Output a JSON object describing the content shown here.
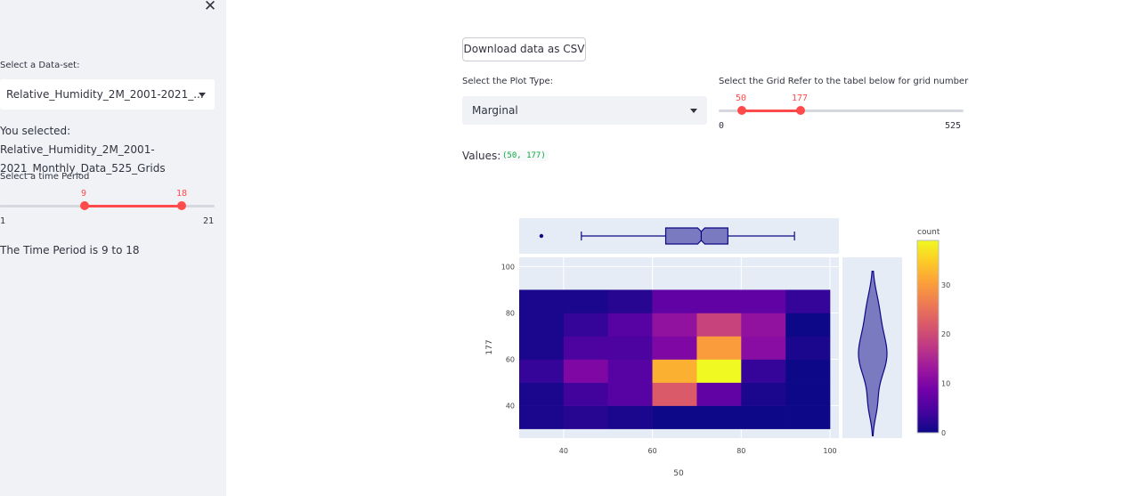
{
  "sidebar": {
    "close_icon": "close-icon",
    "dataset_label": "Select a Data-set:",
    "dataset_value": "Relative_Humidity_2M_2001-2021_...",
    "selected_line1": "You selected: Relative_Humidity_2M_2001-",
    "selected_line2": "2021_Monthly_Data_525_Grids",
    "period_label": "Select a time Period",
    "period_slider": {
      "min": "1",
      "max": "21",
      "low": "9",
      "high": "18"
    },
    "period_text": "The Time Period is 9 to 18"
  },
  "main": {
    "download_label": "Download data as CSV",
    "plot_type_label": "Select the Plot Type:",
    "plot_type_value": "Marginal",
    "grid_label": "Select the Grid Refer to the tabel below for grid number",
    "grid_slider": {
      "min": "0",
      "max": "525",
      "low": "50",
      "high": "177"
    },
    "values_label": "Values:",
    "values_code": "(50, 177)"
  },
  "colors": {
    "accent": "#ff4b4b",
    "sidebar_bg": "#f0f2f6",
    "code_green": "#09ab3b"
  },
  "chart_data": {
    "type": "heatmap",
    "subtype": "density_heatmap_with_marginal_box_and_violin",
    "xlabel": "50",
    "ylabel": "177",
    "x_ticks": [
      40,
      60,
      80,
      100
    ],
    "y_ticks": [
      40,
      60,
      80,
      100
    ],
    "x_range": [
      30,
      102
    ],
    "y_range": [
      26,
      104
    ],
    "x_bins": [
      [
        30,
        40
      ],
      [
        40,
        50
      ],
      [
        50,
        60
      ],
      [
        60,
        70
      ],
      [
        70,
        80
      ],
      [
        80,
        90
      ],
      [
        90,
        100
      ]
    ],
    "y_bins": [
      [
        30,
        40
      ],
      [
        40,
        50
      ],
      [
        50,
        60
      ],
      [
        60,
        70
      ],
      [
        70,
        80
      ],
      [
        80,
        90
      ]
    ],
    "counts": [
      [
        1,
        2,
        1,
        0,
        0,
        0,
        0
      ],
      [
        1,
        4,
        6,
        22,
        7,
        1,
        0
      ],
      [
        3,
        10,
        6,
        32,
        39,
        3,
        0
      ],
      [
        1,
        5,
        5,
        10,
        30,
        11,
        1
      ],
      [
        1,
        3,
        6,
        12,
        19,
        12,
        0
      ],
      [
        1,
        1,
        2,
        7,
        7,
        7,
        3
      ]
    ],
    "colorbar": {
      "title": "count",
      "ticks": [
        0,
        10,
        20,
        30
      ],
      "range": [
        0,
        39
      ]
    },
    "x_marginal_box": {
      "min": 44,
      "q1": 63,
      "median": 71,
      "q3": 77,
      "max": 92,
      "outliers": [
        35
      ]
    },
    "y_marginal_violin": {
      "min": 27,
      "max": 98
    }
  }
}
